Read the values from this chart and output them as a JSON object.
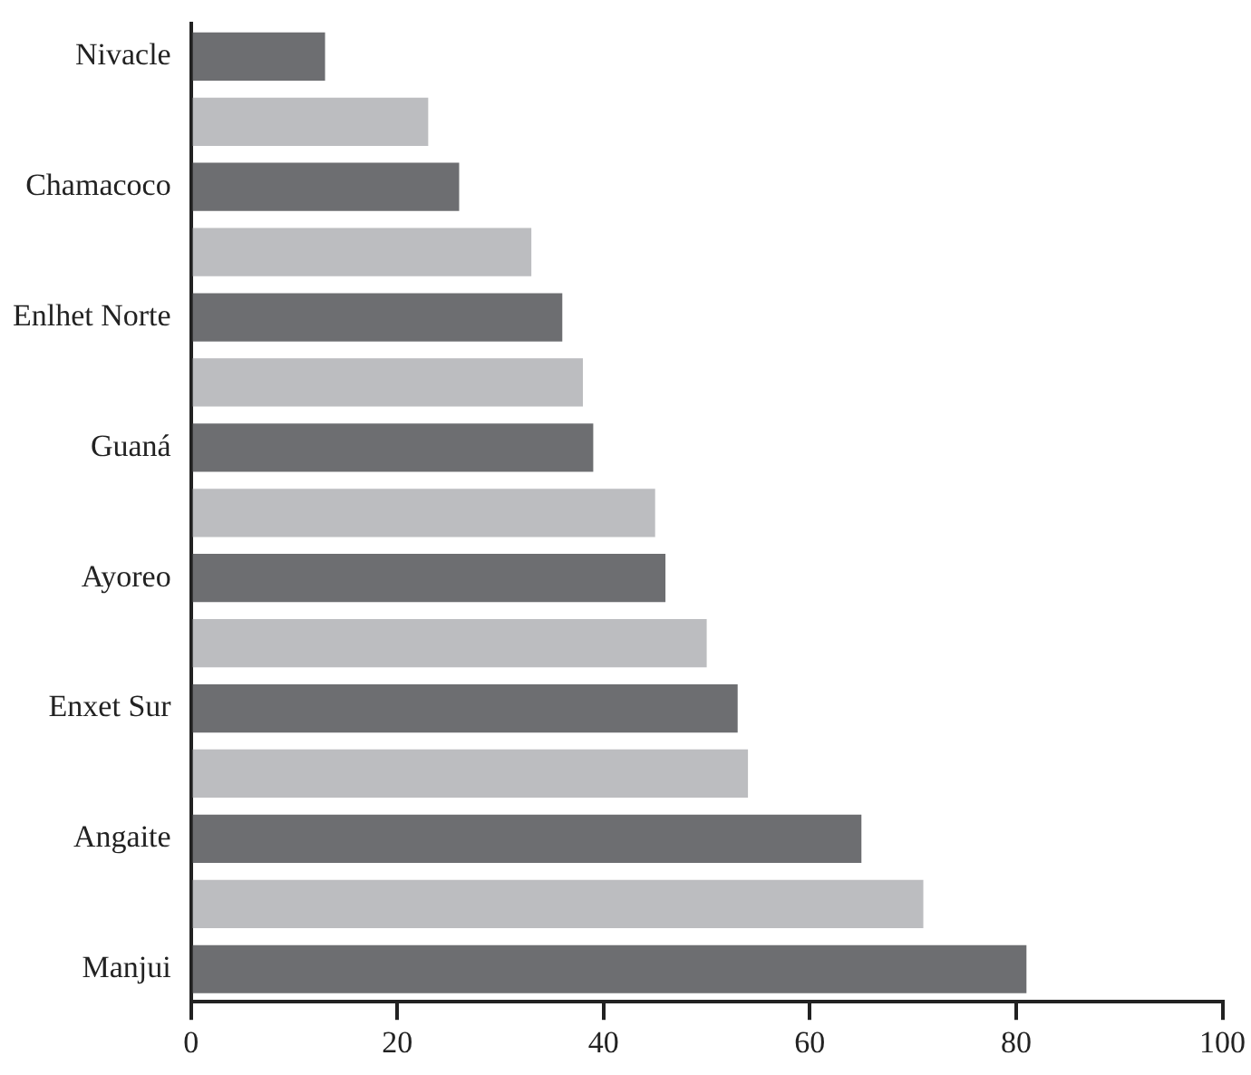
{
  "chart_data": {
    "type": "bar",
    "orientation": "horizontal",
    "categories": [
      "Nivacle",
      null,
      "Chamacoco",
      null,
      "Enlhet Norte",
      null,
      "Guaná",
      null,
      "Ayoreo",
      null,
      "Enxet Sur",
      null,
      "Angaite",
      null,
      "Manjui"
    ],
    "values": [
      13,
      23,
      26,
      33,
      36,
      38,
      39,
      45,
      46,
      50,
      53,
      54,
      65,
      71,
      81
    ],
    "colors": [
      "#6d6e71",
      "#bcbdc0",
      "#6d6e71",
      "#bcbdc0",
      "#6d6e71",
      "#bcbdc0",
      "#6d6e71",
      "#bcbdc0",
      "#6d6e71",
      "#bcbdc0",
      "#6d6e71",
      "#bcbdc0",
      "#6d6e71",
      "#bcbdc0",
      "#6d6e71"
    ],
    "xlim": [
      0,
      100
    ],
    "xticks": [
      0,
      20,
      40,
      60,
      80,
      100
    ],
    "grid": false,
    "legend": false
  }
}
